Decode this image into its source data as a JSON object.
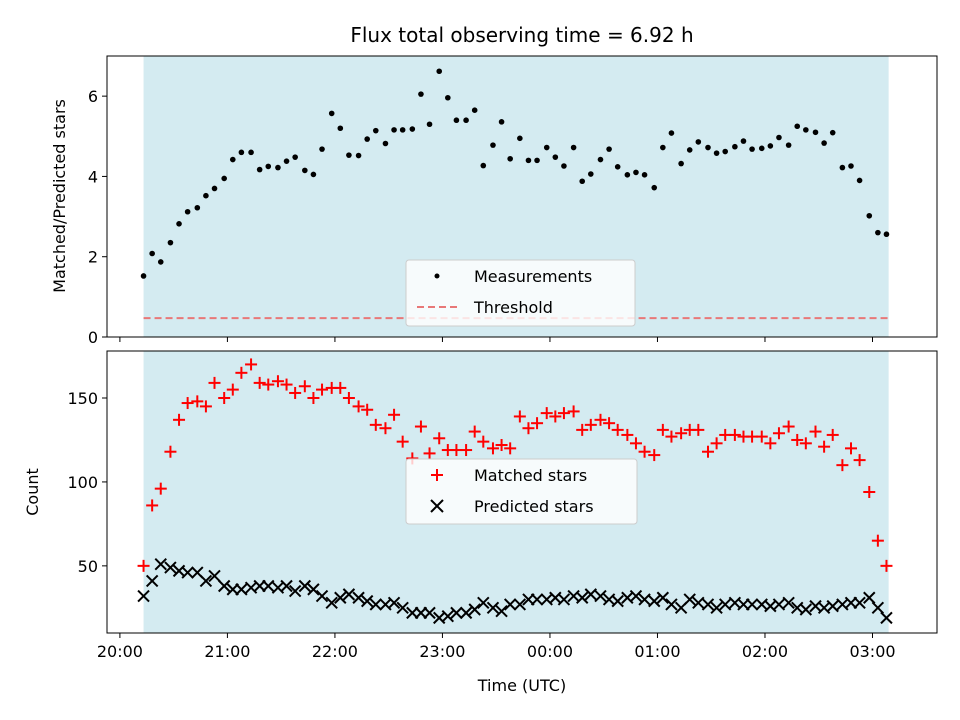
{
  "chart_data": [
    {
      "type": "scatter",
      "title": "Flux total observing time = 6.92 h",
      "xlabel": "",
      "ylabel": "Matched/Predicted stars",
      "ylim": [
        0,
        7
      ],
      "yticks": [
        0,
        2,
        4,
        6
      ],
      "x_range_hours": [
        19.88,
        27.6
      ],
      "shaded_span_hours": [
        20.22,
        27.15
      ],
      "shade_color": "#d4ebf1",
      "threshold": 0.47,
      "legend_position": "lower-center",
      "series": [
        {
          "name": "Measurements",
          "marker": "dot",
          "color": "#000000",
          "x": [
            20.22,
            20.3,
            20.38,
            20.47,
            20.55,
            20.63,
            20.72,
            20.8,
            20.88,
            20.97,
            21.05,
            21.13,
            21.22,
            21.3,
            21.38,
            21.47,
            21.55,
            21.63,
            21.72,
            21.8,
            21.88,
            21.97,
            22.05,
            22.13,
            22.22,
            22.3,
            22.38,
            22.47,
            22.55,
            22.63,
            22.72,
            22.8,
            22.88,
            22.97,
            23.05,
            23.13,
            23.22,
            23.3,
            23.38,
            23.47,
            23.55,
            23.63,
            23.72,
            23.8,
            23.88,
            23.97,
            24.05,
            24.13,
            24.22,
            24.3,
            24.38,
            24.47,
            24.55,
            24.63,
            24.72,
            24.8,
            24.88,
            24.97,
            25.05,
            25.13,
            25.22,
            25.3,
            25.38,
            25.47,
            25.55,
            25.63,
            25.72,
            25.8,
            25.88,
            25.97,
            26.05,
            26.13,
            26.22,
            26.3,
            26.38,
            26.47,
            26.55,
            26.63,
            26.72,
            26.8,
            26.88,
            26.97,
            27.05,
            27.13
          ],
          "y": [
            1.52,
            2.08,
            1.87,
            2.35,
            2.82,
            3.12,
            3.22,
            3.52,
            3.7,
            3.95,
            4.42,
            4.6,
            4.6,
            4.17,
            4.25,
            4.22,
            4.38,
            4.48,
            4.15,
            4.05,
            4.68,
            5.57,
            5.2,
            4.53,
            4.52,
            4.93,
            5.14,
            4.82,
            5.16,
            5.16,
            5.18,
            6.05,
            5.3,
            6.62,
            5.96,
            5.4,
            5.4,
            5.65,
            4.27,
            4.78,
            5.36,
            4.44,
            4.95,
            4.4,
            4.4,
            4.72,
            4.48,
            4.26,
            4.72,
            3.88,
            4.06,
            4.42,
            4.68,
            4.24,
            4.04,
            4.1,
            4.04,
            3.72,
            4.72,
            5.08,
            4.32,
            4.66,
            4.86,
            4.72,
            4.58,
            4.62,
            4.74,
            4.88,
            4.68,
            4.7,
            4.76,
            4.97,
            4.78,
            5.25,
            5.16,
            5.1,
            4.83,
            5.09,
            4.22,
            4.26,
            3.9,
            3.02,
            2.6,
            2.56
          ]
        },
        {
          "name": "Threshold",
          "marker": "dashed-line",
          "color": "#e87878"
        }
      ]
    },
    {
      "type": "scatter",
      "title": "",
      "xlabel": "Time (UTC)",
      "ylabel": "Count",
      "ylim": [
        10,
        178
      ],
      "yticks": [
        50,
        100,
        150
      ],
      "x_range_hours": [
        19.88,
        27.6
      ],
      "xticks_hours": [
        20,
        21,
        22,
        23,
        24,
        25,
        26,
        27
      ],
      "xtick_labels": [
        "20:00",
        "21:00",
        "22:00",
        "23:00",
        "00:00",
        "01:00",
        "02:00",
        "03:00"
      ],
      "shaded_span_hours": [
        20.22,
        27.15
      ],
      "shade_color": "#d4ebf1",
      "legend_position": "center",
      "series": [
        {
          "name": "Matched stars",
          "marker": "plus",
          "color": "#ff0000",
          "x": [
            20.22,
            20.3,
            20.38,
            20.47,
            20.55,
            20.63,
            20.72,
            20.8,
            20.88,
            20.97,
            21.05,
            21.13,
            21.22,
            21.3,
            21.38,
            21.47,
            21.55,
            21.63,
            21.72,
            21.8,
            21.88,
            21.97,
            22.05,
            22.13,
            22.22,
            22.3,
            22.38,
            22.47,
            22.55,
            22.63,
            22.72,
            22.8,
            22.88,
            22.97,
            23.05,
            23.13,
            23.22,
            23.3,
            23.38,
            23.47,
            23.55,
            23.63,
            23.72,
            23.8,
            23.88,
            23.97,
            24.05,
            24.13,
            24.22,
            24.3,
            24.38,
            24.47,
            24.55,
            24.63,
            24.72,
            24.8,
            24.88,
            24.97,
            25.05,
            25.13,
            25.22,
            25.3,
            25.38,
            25.47,
            25.55,
            25.63,
            25.72,
            25.8,
            25.88,
            25.97,
            26.05,
            26.13,
            26.22,
            26.3,
            26.38,
            26.47,
            26.55,
            26.63,
            26.72,
            26.8,
            26.88,
            26.97,
            27.05,
            27.13
          ],
          "y": [
            50,
            86,
            96,
            118,
            137,
            147,
            148,
            145,
            159,
            150,
            155,
            165,
            170,
            159,
            158,
            160,
            158,
            153,
            157,
            150,
            155,
            156,
            156,
            150,
            145,
            143,
            134,
            132,
            140,
            124,
            114,
            133,
            117,
            126,
            119,
            119,
            119,
            130,
            124,
            120,
            122,
            120,
            139,
            132,
            135,
            141,
            139,
            141,
            142,
            131,
            134,
            137,
            135,
            131,
            128,
            123,
            118,
            116,
            131,
            127,
            129,
            131,
            131,
            118,
            123,
            128,
            128,
            127,
            127,
            127,
            123,
            129,
            133,
            125,
            123,
            130,
            121,
            128,
            110,
            120,
            113,
            94,
            65,
            50
          ]
        },
        {
          "name": "Predicted stars",
          "marker": "x",
          "color": "#000000",
          "x": [
            20.22,
            20.3,
            20.38,
            20.47,
            20.55,
            20.63,
            20.72,
            20.8,
            20.88,
            20.97,
            21.05,
            21.13,
            21.22,
            21.3,
            21.38,
            21.47,
            21.55,
            21.63,
            21.72,
            21.8,
            21.88,
            21.97,
            22.05,
            22.13,
            22.22,
            22.3,
            22.38,
            22.47,
            22.55,
            22.63,
            22.72,
            22.8,
            22.88,
            22.97,
            23.05,
            23.13,
            23.22,
            23.3,
            23.38,
            23.47,
            23.55,
            23.63,
            23.72,
            23.8,
            23.88,
            23.97,
            24.05,
            24.13,
            24.22,
            24.3,
            24.38,
            24.47,
            24.55,
            24.63,
            24.72,
            24.8,
            24.88,
            24.97,
            25.05,
            25.13,
            25.22,
            25.3,
            25.38,
            25.47,
            25.55,
            25.63,
            25.72,
            25.8,
            25.88,
            25.97,
            26.05,
            26.13,
            26.22,
            26.3,
            26.38,
            26.47,
            26.55,
            26.63,
            26.72,
            26.8,
            26.88,
            26.97,
            27.05,
            27.13
          ],
          "y": [
            32,
            41,
            51,
            49,
            47,
            46,
            46,
            41,
            44,
            38,
            36,
            36,
            37,
            38,
            38,
            37,
            38,
            35,
            38,
            36,
            32,
            28,
            31,
            33,
            31,
            29,
            27,
            27,
            28,
            25,
            22,
            22,
            22,
            19,
            20,
            22,
            22,
            24,
            28,
            25,
            23,
            27,
            27,
            30,
            30,
            30,
            31,
            30,
            32,
            31,
            33,
            32,
            30,
            29,
            31,
            32,
            30,
            29,
            31,
            27,
            25,
            30,
            28,
            27,
            25,
            27,
            28,
            27,
            27,
            27,
            26,
            27,
            28,
            25,
            24,
            26,
            25,
            26,
            27,
            28,
            28,
            31,
            25,
            19
          ]
        }
      ]
    }
  ]
}
